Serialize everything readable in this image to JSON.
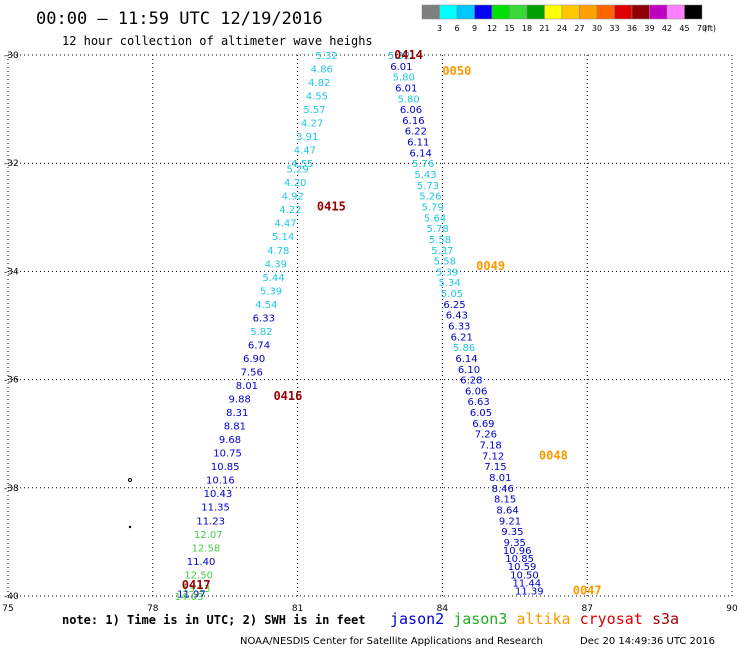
{
  "header": {
    "title": "00:00 – 11:59 UTC 12/19/2016",
    "subtitle": "12 hour collection of altimeter wave heighs"
  },
  "colorbar": {
    "labels": [
      "3",
      "6",
      "9",
      "12",
      "15",
      "18",
      "21",
      "24",
      "27",
      "30",
      "33",
      "36",
      "39",
      "42",
      "45",
      "70",
      "(ft)"
    ],
    "colors": [
      "#7f7f7f",
      "#00ffff",
      "#00c8ff",
      "#0000ff",
      "#00e000",
      "#38d838",
      "#00a000",
      "#ffff00",
      "#ffc800",
      "#ffa000",
      "#ff6400",
      "#e00000",
      "#900000",
      "#c000c0",
      "#ff80ff",
      "#000000"
    ]
  },
  "footer": {
    "note": "note: 1) Time is in UTC; 2) SWH is in feet",
    "satellites": [
      {
        "name": "jason2",
        "color": "#0000cc"
      },
      {
        "name": "jason3",
        "color": "#22aa22"
      },
      {
        "name": "altika",
        "color": "#ff9900"
      },
      {
        "name": "cryosat",
        "color": "#dd0000"
      },
      {
        "name": "s3a",
        "color": "#990000"
      }
    ],
    "credit": "NOAA/NESDIS Center for Satellite Applications and Research",
    "timestamp": "Dec 20 14:49:36 UTC 2016"
  },
  "chart_data": {
    "type": "scatter",
    "xlim": [
      75,
      90
    ],
    "ylim": [
      -40,
      -30
    ],
    "x_ticks": [
      "75",
      "78",
      "81",
      "84",
      "87",
      "90"
    ],
    "y_ticks": [
      "-30",
      "-32",
      "-34",
      "-36",
      "-38",
      "-40"
    ],
    "grid": true,
    "legend_position": "bottom",
    "color_scale": [
      {
        "max": 6,
        "color": "#1ec8e6"
      },
      {
        "max": 12,
        "color": "#0000cc"
      },
      {
        "max": 15,
        "color": "#44cc44"
      },
      {
        "max": 100,
        "color": "#009900"
      }
    ],
    "track_labels": [
      {
        "text": "0414",
        "x": 83.0,
        "y": -30.0,
        "color": "#990000"
      },
      {
        "text": "0415",
        "x": 81.4,
        "y": -32.8,
        "color": "#990000"
      },
      {
        "text": "0416",
        "x": 80.5,
        "y": -36.3,
        "color": "#990000"
      },
      {
        "text": "0417",
        "x": 78.6,
        "y": -39.8,
        "color": "#990000"
      },
      {
        "text": "0050",
        "x": 84.0,
        "y": -30.3,
        "color": "#ff9900"
      },
      {
        "text": "0049",
        "x": 84.7,
        "y": -33.9,
        "color": "#ff9900"
      },
      {
        "text": "0048",
        "x": 86.0,
        "y": -37.4,
        "color": "#ff9900"
      },
      {
        "text": "0047",
        "x": 86.7,
        "y": -39.9,
        "color": "#ff9900"
      }
    ],
    "series": [
      {
        "name": "0414",
        "points": [
          {
            "x": 81.6,
            "y": -30.0,
            "v": "5.32"
          },
          {
            "x": 81.5,
            "y": -30.25,
            "v": "4.86"
          },
          {
            "x": 81.45,
            "y": -30.5,
            "v": "4.82"
          },
          {
            "x": 81.4,
            "y": -30.75,
            "v": "4.55"
          },
          {
            "x": 81.35,
            "y": -31.0,
            "v": "5.57"
          },
          {
            "x": 81.3,
            "y": -31.25,
            "v": "4.27"
          },
          {
            "x": 81.2,
            "y": -31.5,
            "v": "3.91"
          },
          {
            "x": 81.15,
            "y": -31.75,
            "v": "4.47"
          },
          {
            "x": 81.1,
            "y": -32.0,
            "v": "4.55"
          },
          {
            "x": 81.0,
            "y": -32.1,
            "v": "5.29"
          },
          {
            "x": 80.95,
            "y": -32.35,
            "v": "4.20"
          },
          {
            "x": 80.9,
            "y": -32.6,
            "v": "4.92"
          },
          {
            "x": 80.85,
            "y": -32.85,
            "v": "4.22"
          },
          {
            "x": 80.75,
            "y": -33.1,
            "v": "4.47"
          },
          {
            "x": 80.7,
            "y": -33.35,
            "v": "5.14"
          },
          {
            "x": 80.6,
            "y": -33.6,
            "v": "4.78"
          },
          {
            "x": 80.55,
            "y": -33.85,
            "v": "4.39"
          },
          {
            "x": 80.5,
            "y": -34.1,
            "v": "5.44"
          },
          {
            "x": 80.45,
            "y": -34.35,
            "v": "5.39"
          },
          {
            "x": 80.35,
            "y": -34.6,
            "v": "4.54"
          },
          {
            "x": 80.3,
            "y": -34.85,
            "v": "6.33"
          },
          {
            "x": 80.25,
            "y": -35.1,
            "v": "5.82"
          },
          {
            "x": 80.2,
            "y": -35.35,
            "v": "6.74"
          },
          {
            "x": 80.1,
            "y": -35.6,
            "v": "6.90"
          },
          {
            "x": 80.05,
            "y": -35.85,
            "v": "7.56"
          },
          {
            "x": 79.95,
            "y": -36.1,
            "v": "8.01"
          },
          {
            "x": 79.8,
            "y": -36.35,
            "v": "9.88"
          },
          {
            "x": 79.75,
            "y": -36.6,
            "v": "8.31"
          },
          {
            "x": 79.7,
            "y": -36.85,
            "v": "8.81"
          },
          {
            "x": 79.6,
            "y": -37.1,
            "v": "9.68"
          },
          {
            "x": 79.55,
            "y": -37.35,
            "v": "10.75"
          },
          {
            "x": 79.5,
            "y": -37.6,
            "v": "10.85"
          },
          {
            "x": 79.4,
            "y": -37.85,
            "v": "10.16"
          },
          {
            "x": 79.35,
            "y": -38.1,
            "v": "10.43"
          },
          {
            "x": 79.3,
            "y": -38.35,
            "v": "11.35"
          },
          {
            "x": 79.2,
            "y": -38.6,
            "v": "11.23"
          },
          {
            "x": 79.15,
            "y": -38.85,
            "v": "12.07"
          },
          {
            "x": 79.1,
            "y": -39.1,
            "v": "12.58"
          },
          {
            "x": 79.0,
            "y": -39.35,
            "v": "11.40"
          },
          {
            "x": 78.95,
            "y": -39.6,
            "v": "12.50"
          },
          {
            "x": 78.9,
            "y": -39.85,
            "v": "13.13"
          },
          {
            "x": 78.8,
            "y": -39.95,
            "v": "11.97"
          },
          {
            "x": 78.75,
            "y": -40.0,
            "v": "14.03"
          }
        ]
      },
      {
        "name": "0050-0047",
        "points": [
          {
            "x": 83.1,
            "y": -30.0,
            "v": "5.32"
          },
          {
            "x": 83.15,
            "y": -30.2,
            "v": "6.01"
          },
          {
            "x": 83.2,
            "y": -30.4,
            "v": "5.80"
          },
          {
            "x": 83.25,
            "y": -30.6,
            "v": "6.01"
          },
          {
            "x": 83.3,
            "y": -30.8,
            "v": "5.80"
          },
          {
            "x": 83.35,
            "y": -31.0,
            "v": "6.06"
          },
          {
            "x": 83.4,
            "y": -31.2,
            "v": "6.16"
          },
          {
            "x": 83.45,
            "y": -31.4,
            "v": "6.22"
          },
          {
            "x": 83.5,
            "y": -31.6,
            "v": "6.11"
          },
          {
            "x": 83.55,
            "y": -31.8,
            "v": "6.14"
          },
          {
            "x": 83.6,
            "y": -32.0,
            "v": "5.76"
          },
          {
            "x": 83.65,
            "y": -32.2,
            "v": "5.43"
          },
          {
            "x": 83.7,
            "y": -32.4,
            "v": "5.73"
          },
          {
            "x": 83.75,
            "y": -32.6,
            "v": "5.26"
          },
          {
            "x": 83.8,
            "y": -32.8,
            "v": "5.79"
          },
          {
            "x": 83.85,
            "y": -33.0,
            "v": "5.64"
          },
          {
            "x": 83.9,
            "y": -33.2,
            "v": "5.78"
          },
          {
            "x": 83.95,
            "y": -33.4,
            "v": "5.58"
          },
          {
            "x": 84.0,
            "y": -33.6,
            "v": "5.37"
          },
          {
            "x": 84.05,
            "y": -33.8,
            "v": "5.58"
          },
          {
            "x": 84.1,
            "y": -34.0,
            "v": "5.39"
          },
          {
            "x": 84.15,
            "y": -34.2,
            "v": "5.34"
          },
          {
            "x": 84.2,
            "y": -34.4,
            "v": "5.05"
          },
          {
            "x": 84.25,
            "y": -34.6,
            "v": "6.25"
          },
          {
            "x": 84.3,
            "y": -34.8,
            "v": "6.43"
          },
          {
            "x": 84.35,
            "y": -35.0,
            "v": "6.33"
          },
          {
            "x": 84.4,
            "y": -35.2,
            "v": "6.21"
          },
          {
            "x": 84.45,
            "y": -35.4,
            "v": "5.86"
          },
          {
            "x": 84.5,
            "y": -35.6,
            "v": "6.14"
          },
          {
            "x": 84.55,
            "y": -35.8,
            "v": "6.10"
          },
          {
            "x": 84.6,
            "y": -36.0,
            "v": "6.28"
          },
          {
            "x": 84.7,
            "y": -36.2,
            "v": "6.06"
          },
          {
            "x": 84.75,
            "y": -36.4,
            "v": "6.63"
          },
          {
            "x": 84.8,
            "y": -36.6,
            "v": "6.05"
          },
          {
            "x": 84.85,
            "y": -36.8,
            "v": "6.69"
          },
          {
            "x": 84.9,
            "y": -37.0,
            "v": "7.26"
          },
          {
            "x": 85.0,
            "y": -37.2,
            "v": "7.18"
          },
          {
            "x": 85.05,
            "y": -37.4,
            "v": "7.12"
          },
          {
            "x": 85.1,
            "y": -37.6,
            "v": "7.15"
          },
          {
            "x": 85.2,
            "y": -37.8,
            "v": "8.01"
          },
          {
            "x": 85.25,
            "y": -38.0,
            "v": "8.46"
          },
          {
            "x": 85.3,
            "y": -38.2,
            "v": "8.15"
          },
          {
            "x": 85.35,
            "y": -38.4,
            "v": "8.64"
          },
          {
            "x": 85.4,
            "y": -38.6,
            "v": "9.21"
          },
          {
            "x": 85.45,
            "y": -38.8,
            "v": "9.35"
          },
          {
            "x": 85.5,
            "y": -39.0,
            "v": "9.35"
          },
          {
            "x": 85.55,
            "y": -39.15,
            "v": "10.96"
          },
          {
            "x": 85.6,
            "y": -39.3,
            "v": "10.85"
          },
          {
            "x": 85.65,
            "y": -39.45,
            "v": "10.59"
          },
          {
            "x": 85.7,
            "y": -39.6,
            "v": "10.50"
          },
          {
            "x": 85.75,
            "y": -39.75,
            "v": "11.44"
          },
          {
            "x": 85.8,
            "y": -39.9,
            "v": "11.39"
          }
        ]
      }
    ]
  }
}
